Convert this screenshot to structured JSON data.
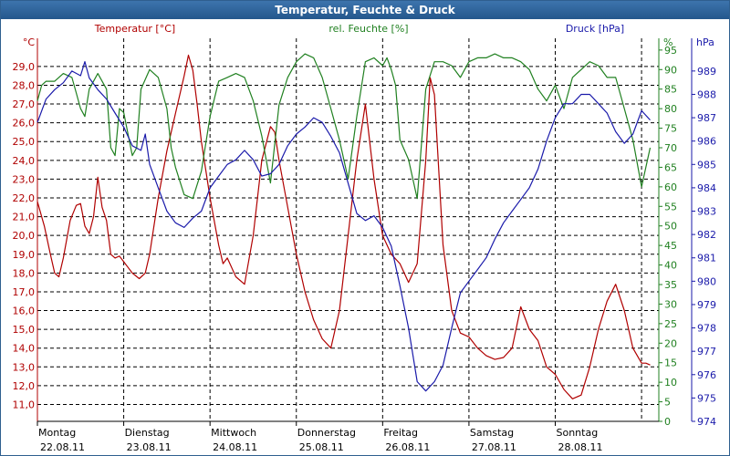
{
  "chart_data": {
    "type": "line",
    "title": "Temperatur, Feuchte & Druck",
    "axes": {
      "temperature": {
        "label": "Temperatur [°C]",
        "unit": "°C",
        "color": "#b00000",
        "ylim": [
          10.1,
          30.5
        ],
        "ticks": [
          "11,0",
          "12,0",
          "13,0",
          "14,0",
          "15,0",
          "16,0",
          "17,0",
          "18,0",
          "19,0",
          "20,0",
          "21,0",
          "22,0",
          "23,0",
          "24,0",
          "25,0",
          "26,0",
          "27,0",
          "28,0",
          "29,0"
        ],
        "tick_values": [
          11,
          12,
          13,
          14,
          15,
          16,
          17,
          18,
          19,
          20,
          21,
          22,
          23,
          24,
          25,
          26,
          27,
          28,
          29
        ]
      },
      "humidity": {
        "label": "rel. Feuchte [%]",
        "unit": "%",
        "color": "#208020",
        "ylim": [
          0,
          98
        ],
        "ticks": [
          "0",
          "5",
          "10",
          "15",
          "20",
          "25",
          "30",
          "35",
          "40",
          "45",
          "50",
          "55",
          "60",
          "65",
          "70",
          "75",
          "80",
          "85",
          "90",
          "95"
        ],
        "tick_values": [
          0,
          5,
          10,
          15,
          20,
          25,
          30,
          35,
          40,
          45,
          50,
          55,
          60,
          65,
          70,
          75,
          80,
          85,
          90,
          95
        ]
      },
      "pressure": {
        "label": "Druck [hPa]",
        "unit": "hPa",
        "color": "#1a1aaa",
        "ylim": [
          974,
          990.4
        ],
        "ticks": [
          "974",
          "975",
          "976",
          "977",
          "978",
          "979",
          "980",
          "981",
          "982",
          "983",
          "984",
          "985",
          "986",
          "987",
          "988",
          "989"
        ],
        "tick_values": [
          974,
          975,
          976,
          977,
          978,
          979,
          980,
          981,
          982,
          983,
          984,
          985,
          986,
          987,
          988,
          989
        ]
      }
    },
    "days": [
      {
        "name": "Montag",
        "date": "22.08.11"
      },
      {
        "name": "Dienstag",
        "date": "23.08.11"
      },
      {
        "name": "Mittwoch",
        "date": "24.08.11"
      },
      {
        "name": "Donnerstag",
        "date": "25.08.11"
      },
      {
        "name": "Freitag",
        "date": "26.08.11"
      },
      {
        "name": "Samstag",
        "date": "27.08.11"
      },
      {
        "name": "Sonntag",
        "date": "28.08.11"
      }
    ],
    "x_unit": "day",
    "xlim": [
      0,
      7.2
    ],
    "grid": true,
    "series": [
      {
        "name": "Temperatur [°C]",
        "axis": "temperature",
        "color": "#b00000",
        "x": [
          0,
          0.08,
          0.15,
          0.2,
          0.25,
          0.3,
          0.38,
          0.45,
          0.5,
          0.55,
          0.6,
          0.65,
          0.7,
          0.75,
          0.8,
          0.85,
          0.9,
          0.95,
          1.0,
          1.05,
          1.1,
          1.18,
          1.25,
          1.3,
          1.4,
          1.5,
          1.6,
          1.7,
          1.75,
          1.8,
          1.85,
          1.9,
          2.0,
          2.1,
          2.15,
          2.2,
          2.3,
          2.4,
          2.5,
          2.6,
          2.7,
          2.75,
          2.8,
          2.9,
          3.0,
          3.1,
          3.2,
          3.3,
          3.4,
          3.5,
          3.6,
          3.7,
          3.8,
          3.9,
          4.0,
          4.1,
          4.2,
          4.3,
          4.4,
          4.5,
          4.55,
          4.6,
          4.7,
          4.8,
          4.9,
          5.0,
          5.1,
          5.2,
          5.3,
          5.4,
          5.5,
          5.6,
          5.7,
          5.8,
          5.9,
          6.0,
          6.1,
          6.2,
          6.3,
          6.4,
          6.5,
          6.6,
          6.7,
          6.8,
          6.9,
          7.0,
          7.05,
          7.1
        ],
        "values": [
          21.8,
          20.5,
          19.0,
          18.0,
          17.8,
          18.8,
          20.8,
          21.6,
          21.7,
          20.5,
          20.1,
          21.0,
          23.1,
          21.5,
          20.8,
          19.0,
          18.8,
          18.9,
          18.6,
          18.3,
          18.0,
          17.7,
          18.0,
          19.0,
          22.0,
          24.5,
          26.5,
          28.5,
          29.6,
          28.8,
          27.0,
          25.0,
          22.0,
          19.5,
          18.5,
          18.8,
          17.8,
          17.4,
          20.0,
          24.0,
          25.8,
          25.5,
          24.0,
          21.5,
          19.0,
          17.0,
          15.5,
          14.5,
          14.0,
          16.0,
          20.0,
          24.0,
          27.0,
          23.0,
          20.0,
          19.0,
          18.5,
          17.5,
          18.5,
          24.0,
          28.4,
          27.5,
          19.5,
          16.0,
          14.8,
          14.6,
          14.0,
          13.6,
          13.4,
          13.5,
          14.0,
          16.2,
          15.0,
          14.4,
          13.0,
          12.6,
          11.8,
          11.3,
          11.5,
          13.0,
          15.0,
          16.5,
          17.4,
          16.0,
          14.0,
          13.2,
          13.2,
          13.1
        ]
      },
      {
        "name": "rel. Feuchte [%]",
        "axis": "humidity",
        "color": "#208020",
        "x": [
          0,
          0.05,
          0.1,
          0.2,
          0.3,
          0.4,
          0.45,
          0.5,
          0.55,
          0.6,
          0.7,
          0.8,
          0.85,
          0.9,
          0.95,
          1.0,
          1.1,
          1.15,
          1.2,
          1.3,
          1.4,
          1.5,
          1.55,
          1.6,
          1.7,
          1.8,
          1.9,
          2.0,
          2.1,
          2.2,
          2.3,
          2.4,
          2.5,
          2.6,
          2.7,
          2.8,
          2.9,
          3.0,
          3.1,
          3.2,
          3.3,
          3.4,
          3.5,
          3.6,
          3.7,
          3.8,
          3.9,
          4.0,
          4.05,
          4.1,
          4.15,
          4.2,
          4.3,
          4.4,
          4.5,
          4.6,
          4.7,
          4.8,
          4.9,
          5.0,
          5.1,
          5.2,
          5.3,
          5.4,
          5.5,
          5.6,
          5.7,
          5.8,
          5.9,
          6.0,
          6.1,
          6.2,
          6.3,
          6.4,
          6.5,
          6.6,
          6.7,
          6.8,
          6.9,
          7.0,
          7.05,
          7.1
        ],
        "values": [
          82,
          86,
          87,
          87,
          89,
          88,
          84,
          80,
          78,
          85,
          89,
          85,
          70,
          68,
          80,
          79,
          68,
          70,
          85,
          90,
          88,
          80,
          70,
          65,
          58,
          57,
          64,
          78,
          87,
          88,
          89,
          88,
          82,
          73,
          61,
          81,
          88,
          92,
          94,
          93,
          88,
          80,
          72,
          62,
          78,
          92,
          93,
          91,
          93,
          90,
          86,
          72,
          67,
          57,
          85,
          92,
          92,
          91,
          88,
          92,
          93,
          93,
          94,
          93,
          93,
          92,
          90,
          85,
          82,
          86,
          80,
          88,
          90,
          92,
          91,
          88,
          88,
          80,
          72,
          60,
          65,
          70
        ]
      },
      {
        "name": "Druck [hPa]",
        "axis": "pressure",
        "color": "#1a1aaa",
        "x": [
          0,
          0.1,
          0.2,
          0.3,
          0.4,
          0.5,
          0.55,
          0.6,
          0.7,
          0.8,
          0.9,
          1.0,
          1.1,
          1.2,
          1.25,
          1.3,
          1.4,
          1.5,
          1.6,
          1.7,
          1.8,
          1.9,
          2.0,
          2.1,
          2.2,
          2.3,
          2.4,
          2.5,
          2.6,
          2.7,
          2.8,
          2.9,
          3.0,
          3.1,
          3.2,
          3.3,
          3.4,
          3.5,
          3.6,
          3.7,
          3.8,
          3.9,
          4.0,
          4.1,
          4.2,
          4.3,
          4.4,
          4.5,
          4.6,
          4.7,
          4.8,
          4.9,
          5.0,
          5.1,
          5.2,
          5.3,
          5.4,
          5.5,
          5.6,
          5.7,
          5.8,
          5.9,
          6.0,
          6.1,
          6.2,
          6.3,
          6.4,
          6.5,
          6.6,
          6.7,
          6.8,
          6.9,
          7.0,
          7.05,
          7.1
        ],
        "values": [
          986.8,
          987.8,
          988.2,
          988.5,
          989.0,
          988.8,
          989.4,
          988.7,
          988.2,
          987.8,
          987.2,
          986.6,
          985.8,
          985.6,
          986.3,
          985.0,
          984.0,
          983.0,
          982.5,
          982.3,
          982.7,
          983.0,
          984.0,
          984.5,
          985.0,
          985.2,
          985.6,
          985.2,
          984.5,
          984.6,
          985.0,
          985.8,
          986.3,
          986.6,
          987.0,
          986.8,
          986.2,
          985.5,
          984.2,
          982.9,
          982.6,
          982.8,
          982.3,
          981.5,
          979.8,
          978.0,
          975.7,
          975.3,
          975.7,
          976.4,
          978.0,
          979.5,
          980.0,
          980.5,
          981.0,
          981.8,
          982.5,
          983.0,
          983.5,
          984.0,
          984.8,
          986.0,
          987.0,
          987.6,
          987.6,
          988.0,
          988.0,
          987.6,
          987.2,
          986.4,
          985.9,
          986.3,
          987.3,
          987.1,
          986.9
        ]
      }
    ]
  }
}
